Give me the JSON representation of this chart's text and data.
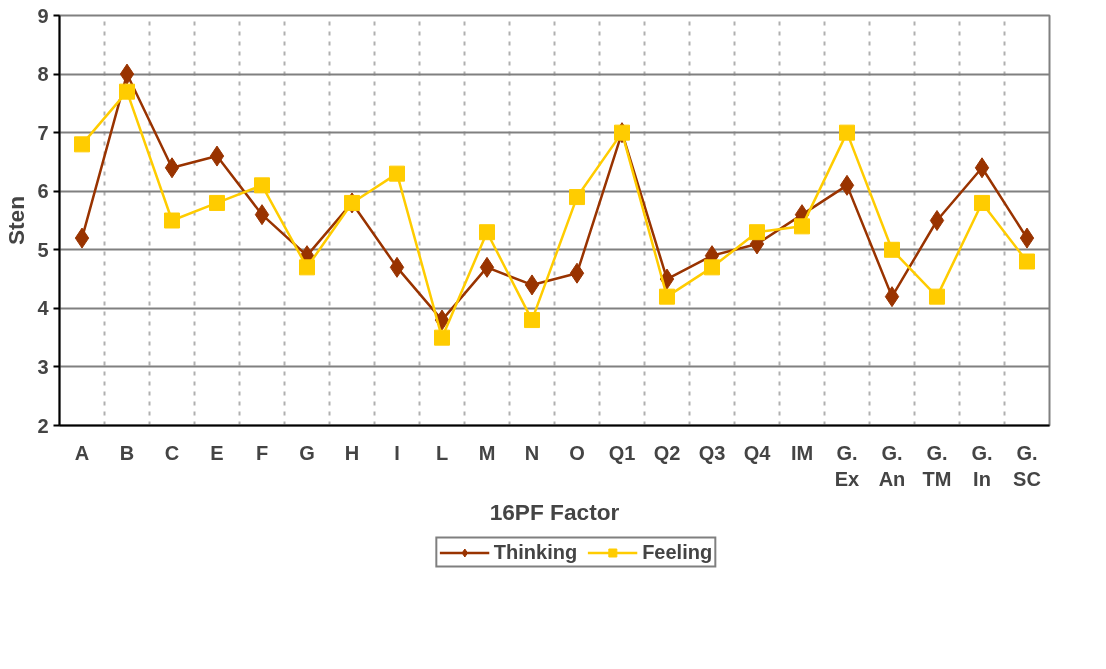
{
  "chart_data": {
    "type": "line",
    "xlabel": "16PF Factor",
    "ylabel": "Sten",
    "categories": [
      "A",
      "B",
      "C",
      "E",
      "F",
      "G",
      "H",
      "I",
      "L",
      "M",
      "N",
      "O",
      "Q1",
      "Q2",
      "Q3",
      "Q4",
      "IM",
      "G. Ex",
      "G. An",
      "G. TM",
      "G. In",
      "G. SC"
    ],
    "series": [
      {
        "name": "Thinking",
        "color": "#993300",
        "marker": "diamond",
        "values": [
          5.2,
          8.0,
          6.4,
          6.6,
          5.6,
          4.9,
          5.8,
          4.7,
          3.8,
          4.7,
          4.4,
          4.6,
          7.0,
          4.5,
          4.9,
          5.1,
          5.6,
          6.1,
          4.2,
          5.5,
          6.4,
          5.2
        ]
      },
      {
        "name": "Feeling",
        "color": "#ffcc00",
        "marker": "square",
        "values": [
          6.8,
          7.7,
          5.5,
          5.8,
          6.1,
          4.7,
          5.8,
          6.3,
          3.5,
          5.3,
          3.8,
          5.9,
          7.0,
          4.2,
          4.7,
          5.3,
          5.4,
          7.0,
          5.0,
          4.2,
          5.8,
          4.8
        ]
      }
    ],
    "ylim": [
      2,
      9
    ],
    "yticks": [
      2,
      3,
      4,
      5,
      6,
      7,
      8,
      9
    ],
    "grid": true,
    "legend": "bottom",
    "line_style": "solid"
  }
}
